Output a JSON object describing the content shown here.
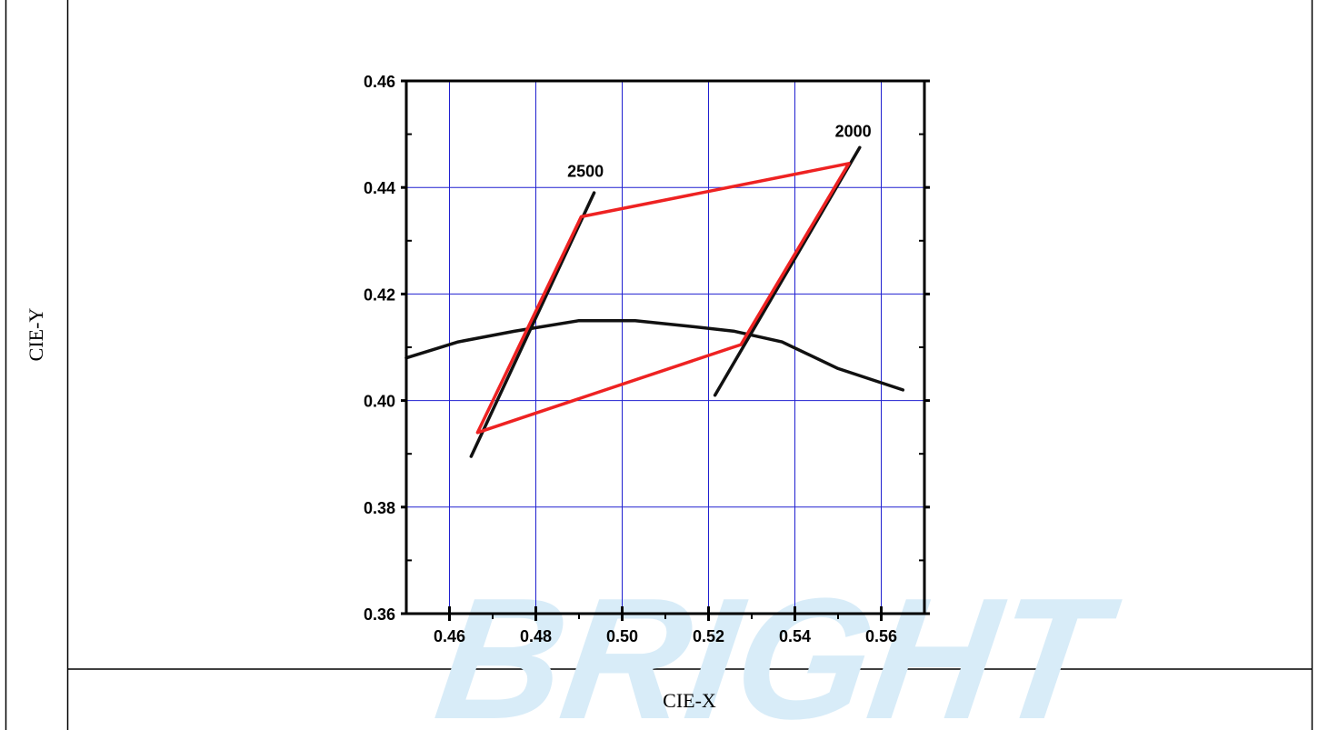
{
  "table": {
    "y_header": "CIE-Y",
    "x_header": "CIE-X"
  },
  "watermark": {
    "text": "BRIGHT",
    "color": "#d8ecf8"
  },
  "chart_data": {
    "type": "line",
    "xlim": [
      0.45,
      0.57
    ],
    "ylim": [
      0.36,
      0.46
    ],
    "xticks": [
      0.46,
      0.48,
      0.5,
      0.52,
      0.54,
      0.56
    ],
    "xtick_labels": [
      "0.46",
      "0.48",
      "0.50",
      "0.52",
      "0.54",
      "0.56"
    ],
    "yticks": [
      0.36,
      0.38,
      0.4,
      0.42,
      0.44,
      0.46
    ],
    "ytick_labels": [
      "0.36",
      "0.38",
      "0.40",
      "0.42",
      "0.44",
      "0.46"
    ],
    "grid": true,
    "grid_color": "#2020d0",
    "series": [
      {
        "color": "#111111",
        "points": [
          [
            0.45,
            0.408
          ],
          [
            0.462,
            0.411
          ],
          [
            0.475,
            0.413
          ],
          [
            0.49,
            0.415
          ],
          [
            0.503,
            0.415
          ],
          [
            0.515,
            0.414
          ],
          [
            0.526,
            0.413
          ],
          [
            0.537,
            0.411
          ],
          [
            0.55,
            0.406
          ],
          [
            0.565,
            0.402
          ]
        ]
      },
      {
        "color": "#111111",
        "points": [
          [
            0.465,
            0.3895
          ],
          [
            0.4935,
            0.439
          ]
        ]
      },
      {
        "color": "#111111",
        "points": [
          [
            0.5215,
            0.401
          ],
          [
            0.555,
            0.4475
          ]
        ]
      },
      {
        "color": "#ee2222",
        "points": [
          [
            0.4665,
            0.394
          ],
          [
            0.4905,
            0.4345
          ],
          [
            0.5525,
            0.4445
          ],
          [
            0.5275,
            0.4105
          ],
          [
            0.4665,
            0.394
          ]
        ]
      }
    ],
    "annotations": [
      {
        "text": "2500",
        "x": 0.4915,
        "y": 0.442
      },
      {
        "text": "2000",
        "x": 0.5535,
        "y": 0.4495
      }
    ]
  }
}
